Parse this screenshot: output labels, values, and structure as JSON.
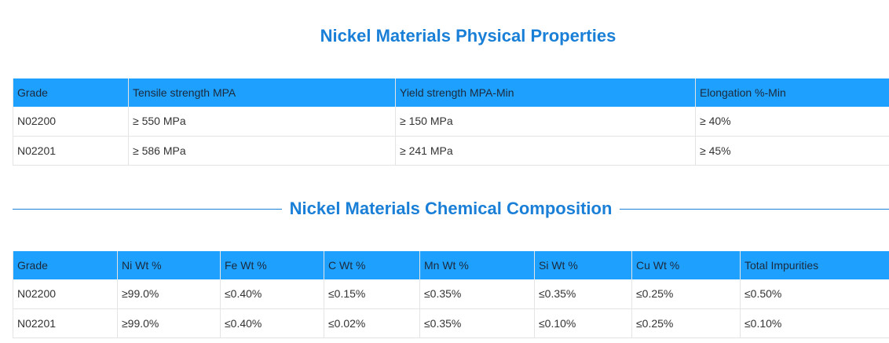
{
  "physical": {
    "title": "Nickel Materials Physical Properties",
    "headers": [
      "Grade",
      "Tensile strength MPA",
      "Yield strength MPA-Min",
      "Elongation %-Min"
    ],
    "rows": [
      [
        "N02200",
        "≥ 550 MPa",
        "≥ 150 MPa",
        "≥ 40%"
      ],
      [
        "N02201",
        "≥ 586 MPa",
        "≥ 241 MPa",
        "≥ 45%"
      ]
    ]
  },
  "chemical": {
    "title": "Nickel Materials Chemical Composition",
    "headers": [
      "Grade",
      "Ni Wt %",
      "Fe Wt %",
      "C Wt %",
      "Mn Wt %",
      "Si Wt %",
      "Cu Wt %",
      "Total Impurities"
    ],
    "rows": [
      [
        "N02200",
        "≥99.0%",
        "≤0.40%",
        "≤0.15%",
        "≤0.35%",
        "≤0.35%",
        "≤0.25%",
        "≤0.50%"
      ],
      [
        "N02201",
        "≥99.0%",
        "≤0.40%",
        "≤0.02%",
        "≤0.35%",
        "≤0.10%",
        "≤0.25%",
        "≤0.10%"
      ]
    ]
  },
  "colors": {
    "accent": "#1a7fd6",
    "header_bg": "#1ea0ff"
  }
}
